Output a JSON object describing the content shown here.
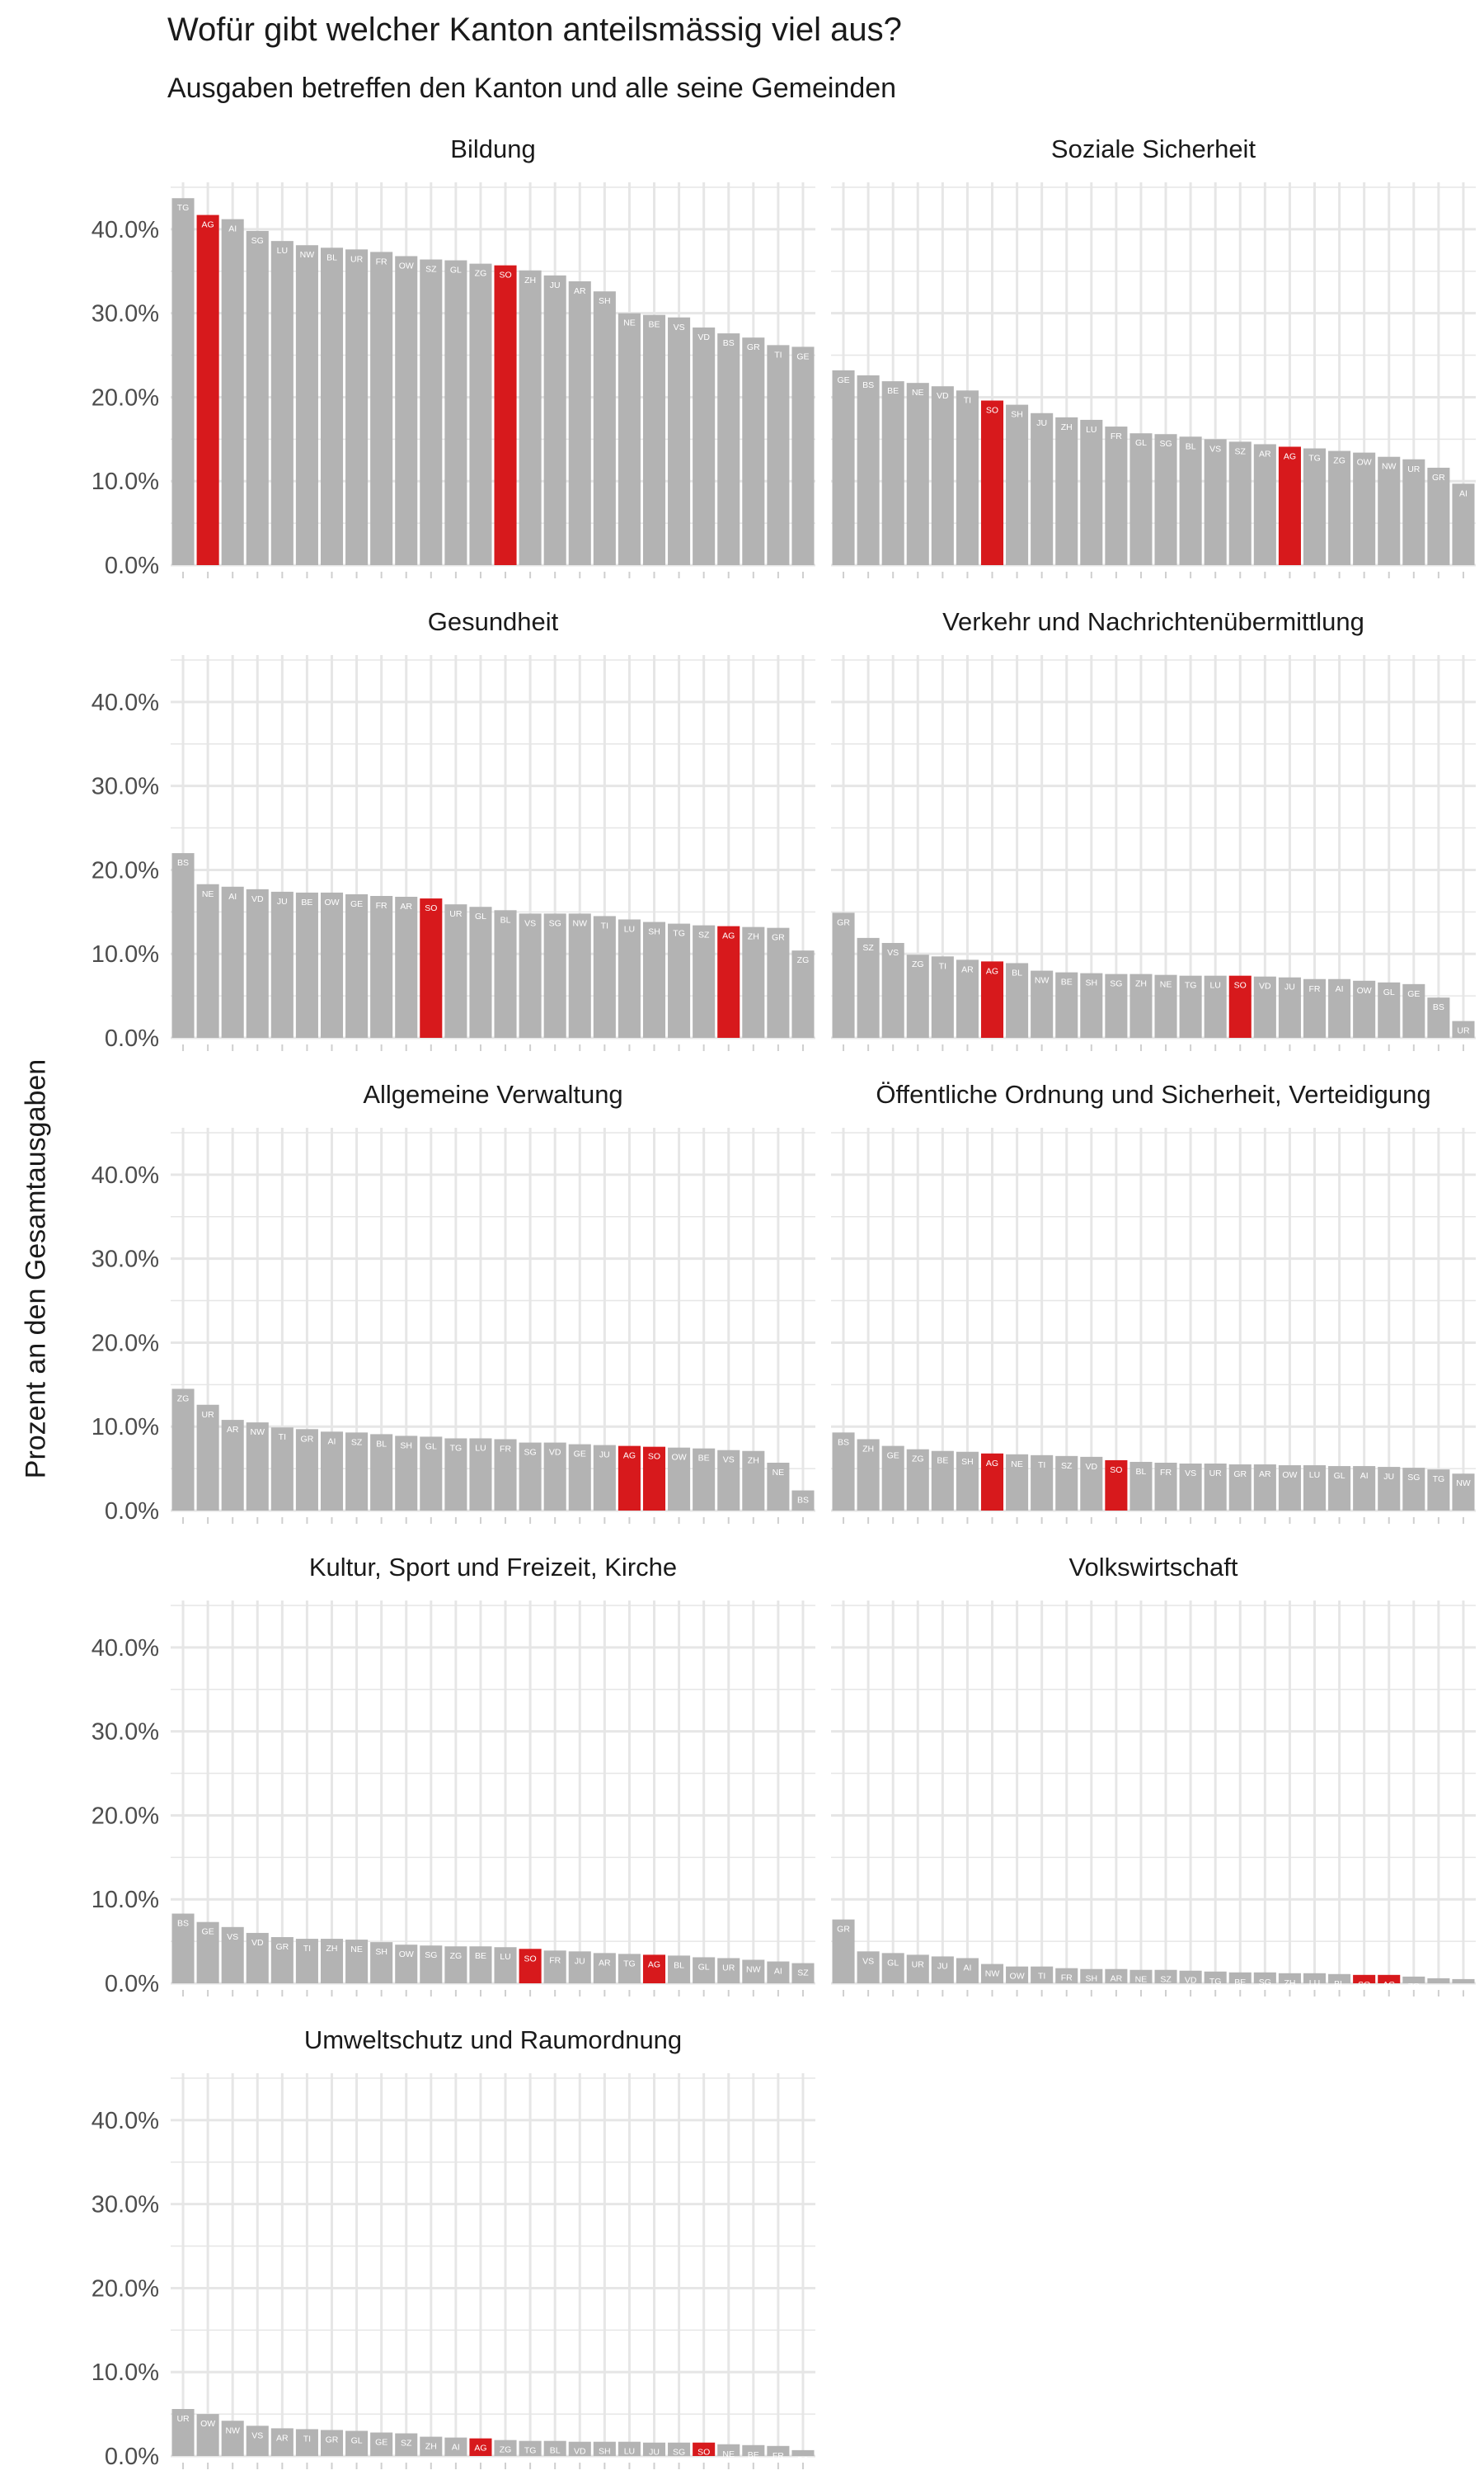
{
  "title": "Wofür gibt welcher Kanton anteilsmässig viel aus?",
  "subtitle": "Ausgaben betreffen den Kanton und alle seine Gemeinden",
  "ylabel": "Prozent an den Gesamtausgaben",
  "colors": {
    "default_bar": "#b3b3b3",
    "highlight_bar": "#d7191c",
    "grid": "#e6e6e6"
  },
  "chart_data": {
    "type": "bar",
    "facets": true,
    "ylim": [
      0,
      45
    ],
    "y_ticks": [
      "0.0%",
      "10.0%",
      "20.0%",
      "30.0%",
      "40.0%"
    ],
    "highlight": [
      "AG",
      "SO"
    ],
    "grid": true,
    "panels": [
      {
        "name": "Bildung",
        "categories": [
          "TG",
          "AG",
          "AI",
          "SG",
          "LU",
          "NW",
          "BL",
          "UR",
          "FR",
          "OW",
          "SZ",
          "GL",
          "ZG",
          "SO",
          "ZH",
          "JU",
          "AR",
          "SH",
          "NE",
          "BE",
          "VS",
          "VD",
          "BS",
          "GR",
          "TI",
          "GE"
        ],
        "values": [
          43.7,
          41.7,
          41.2,
          39.8,
          38.6,
          38.1,
          37.8,
          37.6,
          37.3,
          36.8,
          36.4,
          36.3,
          35.9,
          35.7,
          35.1,
          34.5,
          33.8,
          32.6,
          30.0,
          29.8,
          29.5,
          28.3,
          27.6,
          27.1,
          26.2,
          26.0
        ]
      },
      {
        "name": "Soziale Sicherheit",
        "categories": [
          "GE",
          "BS",
          "BE",
          "NE",
          "VD",
          "TI",
          "SO",
          "SH",
          "JU",
          "ZH",
          "LU",
          "FR",
          "GL",
          "SG",
          "BL",
          "VS",
          "SZ",
          "AR",
          "AG",
          "TG",
          "ZG",
          "OW",
          "NW",
          "UR",
          "GR",
          "AI"
        ],
        "values": [
          23.2,
          22.6,
          21.9,
          21.7,
          21.3,
          20.8,
          19.6,
          19.1,
          18.1,
          17.6,
          17.3,
          16.5,
          15.7,
          15.6,
          15.3,
          15.0,
          14.7,
          14.4,
          14.1,
          13.9,
          13.6,
          13.4,
          12.9,
          12.6,
          11.6,
          9.7
        ]
      },
      {
        "name": "Gesundheit",
        "categories": [
          "BS",
          "NE",
          "AI",
          "VD",
          "JU",
          "BE",
          "OW",
          "GE",
          "FR",
          "AR",
          "SO",
          "UR",
          "GL",
          "BL",
          "VS",
          "SG",
          "NW",
          "TI",
          "LU",
          "SH",
          "TG",
          "SZ",
          "AG",
          "ZH",
          "GR",
          "ZG"
        ],
        "values": [
          22.0,
          18.3,
          18.0,
          17.7,
          17.4,
          17.3,
          17.3,
          17.1,
          16.9,
          16.8,
          16.6,
          15.9,
          15.6,
          15.2,
          14.8,
          14.8,
          14.8,
          14.5,
          14.1,
          13.8,
          13.6,
          13.4,
          13.3,
          13.2,
          13.1,
          10.4
        ]
      },
      {
        "name": "Verkehr und Nachrichtenübermittlung",
        "categories": [
          "GR",
          "SZ",
          "VS",
          "ZG",
          "TI",
          "AR",
          "AG",
          "BL",
          "NW",
          "BE",
          "SH",
          "SG",
          "ZH",
          "NE",
          "TG",
          "LU",
          "SO",
          "VD",
          "JU",
          "FR",
          "AI",
          "OW",
          "GL",
          "GE",
          "BS",
          "UR"
        ],
        "values": [
          14.9,
          11.9,
          11.3,
          9.9,
          9.7,
          9.3,
          9.1,
          8.9,
          8.0,
          7.8,
          7.7,
          7.6,
          7.6,
          7.5,
          7.4,
          7.4,
          7.4,
          7.3,
          7.2,
          7.0,
          7.0,
          6.8,
          6.6,
          6.4,
          4.8,
          2.0
        ]
      },
      {
        "name": "Allgemeine Verwaltung",
        "categories": [
          "ZG",
          "UR",
          "AR",
          "NW",
          "TI",
          "GR",
          "AI",
          "SZ",
          "BL",
          "SH",
          "GL",
          "TG",
          "LU",
          "FR",
          "SG",
          "VD",
          "GE",
          "JU",
          "AG",
          "SO",
          "OW",
          "BE",
          "VS",
          "ZH",
          "NE",
          "BS"
        ],
        "values": [
          14.5,
          12.6,
          10.8,
          10.5,
          9.9,
          9.7,
          9.4,
          9.3,
          9.1,
          8.9,
          8.8,
          8.6,
          8.6,
          8.5,
          8.1,
          8.1,
          7.9,
          7.8,
          7.7,
          7.6,
          7.5,
          7.4,
          7.2,
          7.1,
          5.7,
          2.4
        ]
      },
      {
        "name": "Öffentliche Ordnung und Sicherheit, Verteidigung",
        "categories": [
          "BS",
          "ZH",
          "GE",
          "ZG",
          "BE",
          "SH",
          "AG",
          "NE",
          "TI",
          "SZ",
          "VD",
          "SO",
          "BL",
          "FR",
          "VS",
          "UR",
          "GR",
          "AR",
          "OW",
          "LU",
          "GL",
          "AI",
          "JU",
          "SG",
          "TG",
          "NW"
        ],
        "values": [
          9.3,
          8.5,
          7.7,
          7.3,
          7.1,
          7.0,
          6.8,
          6.7,
          6.6,
          6.5,
          6.4,
          6.0,
          5.8,
          5.7,
          5.6,
          5.6,
          5.5,
          5.5,
          5.4,
          5.4,
          5.3,
          5.3,
          5.2,
          5.1,
          4.9,
          4.4
        ]
      },
      {
        "name": "Kultur, Sport und Freizeit, Kirche",
        "categories": [
          "BS",
          "GE",
          "VS",
          "VD",
          "GR",
          "TI",
          "ZH",
          "NE",
          "SH",
          "OW",
          "SG",
          "ZG",
          "BE",
          "LU",
          "SO",
          "FR",
          "JU",
          "AR",
          "TG",
          "AG",
          "BL",
          "GL",
          "UR",
          "NW",
          "AI",
          "SZ"
        ],
        "values": [
          8.3,
          7.3,
          6.7,
          6.0,
          5.5,
          5.3,
          5.3,
          5.2,
          4.9,
          4.6,
          4.5,
          4.4,
          4.4,
          4.3,
          4.1,
          3.9,
          3.8,
          3.6,
          3.5,
          3.4,
          3.3,
          3.1,
          3.0,
          2.8,
          2.6,
          2.4
        ]
      },
      {
        "name": "Volkswirtschaft",
        "categories": [
          "GR",
          "VS",
          "GL",
          "UR",
          "JU",
          "AI",
          "NW",
          "OW",
          "TI",
          "FR",
          "SH",
          "AR",
          "NE",
          "SZ",
          "VD",
          "TG",
          "BE",
          "SG",
          "ZH",
          "LU",
          "BL",
          "SO",
          "AG",
          "ZG",
          "GE",
          "BS"
        ],
        "values": [
          7.6,
          3.8,
          3.6,
          3.4,
          3.2,
          3.0,
          2.3,
          2.0,
          2.0,
          1.8,
          1.7,
          1.7,
          1.6,
          1.6,
          1.5,
          1.4,
          1.3,
          1.3,
          1.2,
          1.2,
          1.1,
          1.0,
          1.0,
          0.8,
          0.6,
          0.5
        ]
      },
      {
        "name": "Umweltschutz und Raumordnung",
        "categories": [
          "UR",
          "OW",
          "NW",
          "VS",
          "AR",
          "TI",
          "GR",
          "GL",
          "GE",
          "SZ",
          "ZH",
          "AI",
          "AG",
          "ZG",
          "TG",
          "BL",
          "VD",
          "SH",
          "LU",
          "JU",
          "SG",
          "SO",
          "NE",
          "BE",
          "FR",
          "BS"
        ],
        "values": [
          5.6,
          5.0,
          4.2,
          3.6,
          3.3,
          3.2,
          3.1,
          3.0,
          2.8,
          2.7,
          2.3,
          2.2,
          2.1,
          1.9,
          1.8,
          1.8,
          1.7,
          1.7,
          1.7,
          1.6,
          1.6,
          1.6,
          1.4,
          1.3,
          1.2,
          0.7
        ]
      }
    ]
  }
}
